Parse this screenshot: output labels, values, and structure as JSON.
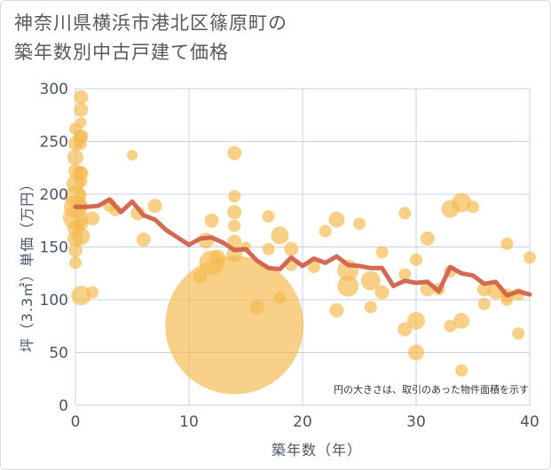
{
  "title_line1": "神奈川県横浜市港北区篠原町の",
  "title_line2": "築年数別中古戸建て価格",
  "note": "円の大きさは、取引のあった物件面積を示す",
  "colors": {
    "bubble": "#f5b94f",
    "line": "#d0624c",
    "grid": "#c9d1e0",
    "axis": "#4a5563",
    "plot_bg": "#ffffff"
  },
  "chart_data": {
    "type": "scatter",
    "xlabel": "築年数（年）",
    "ylabel": "坪（3.3㎡）単価（万円）",
    "xlim": [
      0,
      40
    ],
    "ylim": [
      0,
      300
    ],
    "xticks": [
      "0",
      "10",
      "20",
      "30",
      "40"
    ],
    "yticks": [
      "0",
      "50",
      "100",
      "150",
      "200",
      "250",
      "300"
    ],
    "series": [
      {
        "kind": "bubble",
        "points": [
          {
            "x": 0,
            "y": 248,
            "s": 8
          },
          {
            "x": 0,
            "y": 235,
            "s": 9
          },
          {
            "x": 0,
            "y": 222,
            "s": 8
          },
          {
            "x": 0,
            "y": 210,
            "s": 10
          },
          {
            "x": 0,
            "y": 198,
            "s": 12
          },
          {
            "x": 0,
            "y": 188,
            "s": 13
          },
          {
            "x": 0,
            "y": 178,
            "s": 14
          },
          {
            "x": 0,
            "y": 168,
            "s": 9
          },
          {
            "x": 0,
            "y": 158,
            "s": 9
          },
          {
            "x": 0,
            "y": 147,
            "s": 8
          },
          {
            "x": 0,
            "y": 135,
            "s": 7
          },
          {
            "x": 0,
            "y": 262,
            "s": 7
          },
          {
            "x": 0.4,
            "y": 253,
            "s": 8
          },
          {
            "x": 0.4,
            "y": 220,
            "s": 8
          },
          {
            "x": 0.5,
            "y": 292,
            "s": 8
          },
          {
            "x": 0.5,
            "y": 280,
            "s": 8
          },
          {
            "x": 0.5,
            "y": 268,
            "s": 6
          },
          {
            "x": 0.5,
            "y": 255,
            "s": 8
          },
          {
            "x": 0.5,
            "y": 247,
            "s": 6
          },
          {
            "x": 0.5,
            "y": 220,
            "s": 8
          },
          {
            "x": 0.5,
            "y": 212,
            "s": 7
          },
          {
            "x": 0.5,
            "y": 200,
            "s": 6
          },
          {
            "x": 0.5,
            "y": 190,
            "s": 7
          },
          {
            "x": 0.5,
            "y": 172,
            "s": 8
          },
          {
            "x": 0.5,
            "y": 160,
            "s": 10
          },
          {
            "x": 0.5,
            "y": 104,
            "s": 11
          },
          {
            "x": 1.5,
            "y": 177,
            "s": 8
          },
          {
            "x": 1.5,
            "y": 107,
            "s": 7
          },
          {
            "x": 3,
            "y": 190,
            "s": 8
          },
          {
            "x": 3.5,
            "y": 185,
            "s": 7
          },
          {
            "x": 5,
            "y": 237,
            "s": 6
          },
          {
            "x": 5.5,
            "y": 182,
            "s": 8
          },
          {
            "x": 6,
            "y": 157,
            "s": 8
          },
          {
            "x": 7,
            "y": 189,
            "s": 8
          },
          {
            "x": 11,
            "y": 122,
            "s": 8
          },
          {
            "x": 11.5,
            "y": 156,
            "s": 9
          },
          {
            "x": 12,
            "y": 175,
            "s": 8
          },
          {
            "x": 12,
            "y": 135,
            "s": 14
          },
          {
            "x": 12.5,
            "y": 140,
            "s": 9
          },
          {
            "x": 14,
            "y": 76,
            "s": 78
          },
          {
            "x": 14,
            "y": 239,
            "s": 8
          },
          {
            "x": 14,
            "y": 198,
            "s": 7
          },
          {
            "x": 14,
            "y": 183,
            "s": 8
          },
          {
            "x": 14,
            "y": 170,
            "s": 7
          },
          {
            "x": 14,
            "y": 155,
            "s": 8
          },
          {
            "x": 14,
            "y": 143,
            "s": 9
          },
          {
            "x": 15,
            "y": 150,
            "s": 6
          },
          {
            "x": 16,
            "y": 93,
            "s": 8
          },
          {
            "x": 17,
            "y": 179,
            "s": 7
          },
          {
            "x": 17,
            "y": 148,
            "s": 7
          },
          {
            "x": 18,
            "y": 161,
            "s": 10
          },
          {
            "x": 18,
            "y": 102,
            "s": 7
          },
          {
            "x": 19,
            "y": 148,
            "s": 8
          },
          {
            "x": 19,
            "y": 133,
            "s": 7
          },
          {
            "x": 21,
            "y": 131,
            "s": 7
          },
          {
            "x": 22,
            "y": 165,
            "s": 7
          },
          {
            "x": 23,
            "y": 176,
            "s": 9
          },
          {
            "x": 23,
            "y": 90,
            "s": 8
          },
          {
            "x": 24,
            "y": 128,
            "s": 12
          },
          {
            "x": 24,
            "y": 113,
            "s": 12
          },
          {
            "x": 25,
            "y": 172,
            "s": 7
          },
          {
            "x": 26,
            "y": 118,
            "s": 11
          },
          {
            "x": 26,
            "y": 93,
            "s": 7
          },
          {
            "x": 27,
            "y": 145,
            "s": 7
          },
          {
            "x": 27,
            "y": 107,
            "s": 8
          },
          {
            "x": 29,
            "y": 182,
            "s": 7
          },
          {
            "x": 29,
            "y": 124,
            "s": 7
          },
          {
            "x": 29,
            "y": 72,
            "s": 8
          },
          {
            "x": 30,
            "y": 138,
            "s": 7
          },
          {
            "x": 30,
            "y": 80,
            "s": 10
          },
          {
            "x": 30,
            "y": 50,
            "s": 9
          },
          {
            "x": 31,
            "y": 158,
            "s": 8
          },
          {
            "x": 31,
            "y": 110,
            "s": 8
          },
          {
            "x": 32,
            "y": 110,
            "s": 7
          },
          {
            "x": 33,
            "y": 186,
            "s": 10
          },
          {
            "x": 33,
            "y": 127,
            "s": 7
          },
          {
            "x": 33,
            "y": 75,
            "s": 7
          },
          {
            "x": 34,
            "y": 192,
            "s": 11
          },
          {
            "x": 34,
            "y": 80,
            "s": 9
          },
          {
            "x": 34,
            "y": 33,
            "s": 7
          },
          {
            "x": 35,
            "y": 188,
            "s": 7
          },
          {
            "x": 36,
            "y": 110,
            "s": 8
          },
          {
            "x": 36,
            "y": 96,
            "s": 7
          },
          {
            "x": 37,
            "y": 108,
            "s": 9
          },
          {
            "x": 38,
            "y": 153,
            "s": 7
          },
          {
            "x": 38,
            "y": 100,
            "s": 7
          },
          {
            "x": 38,
            "y": 104,
            "s": 8
          },
          {
            "x": 39,
            "y": 105,
            "s": 7
          },
          {
            "x": 39,
            "y": 68,
            "s": 7
          },
          {
            "x": 40,
            "y": 140,
            "s": 7
          }
        ]
      },
      {
        "kind": "line",
        "points": [
          {
            "x": 0,
            "y": 188
          },
          {
            "x": 1,
            "y": 188
          },
          {
            "x": 2,
            "y": 189
          },
          {
            "x": 3,
            "y": 195
          },
          {
            "x": 4,
            "y": 183
          },
          {
            "x": 5,
            "y": 193
          },
          {
            "x": 6,
            "y": 180
          },
          {
            "x": 7,
            "y": 176
          },
          {
            "x": 8,
            "y": 166
          },
          {
            "x": 9,
            "y": 159
          },
          {
            "x": 10,
            "y": 152
          },
          {
            "x": 11,
            "y": 158
          },
          {
            "x": 12,
            "y": 159
          },
          {
            "x": 13,
            "y": 154
          },
          {
            "x": 14,
            "y": 147
          },
          {
            "x": 15,
            "y": 148
          },
          {
            "x": 16,
            "y": 137
          },
          {
            "x": 17,
            "y": 130
          },
          {
            "x": 18,
            "y": 129
          },
          {
            "x": 19,
            "y": 140
          },
          {
            "x": 20,
            "y": 132
          },
          {
            "x": 21,
            "y": 139
          },
          {
            "x": 22,
            "y": 135
          },
          {
            "x": 23,
            "y": 141
          },
          {
            "x": 24,
            "y": 133
          },
          {
            "x": 25,
            "y": 132
          },
          {
            "x": 26,
            "y": 130
          },
          {
            "x": 27,
            "y": 130
          },
          {
            "x": 28,
            "y": 113
          },
          {
            "x": 29,
            "y": 118
          },
          {
            "x": 30,
            "y": 116
          },
          {
            "x": 31,
            "y": 117
          },
          {
            "x": 32,
            "y": 108
          },
          {
            "x": 33,
            "y": 131
          },
          {
            "x": 34,
            "y": 125
          },
          {
            "x": 35,
            "y": 123
          },
          {
            "x": 36,
            "y": 115
          },
          {
            "x": 37,
            "y": 117
          },
          {
            "x": 38,
            "y": 104
          },
          {
            "x": 39,
            "y": 108
          },
          {
            "x": 40,
            "y": 105
          }
        ]
      }
    ]
  }
}
